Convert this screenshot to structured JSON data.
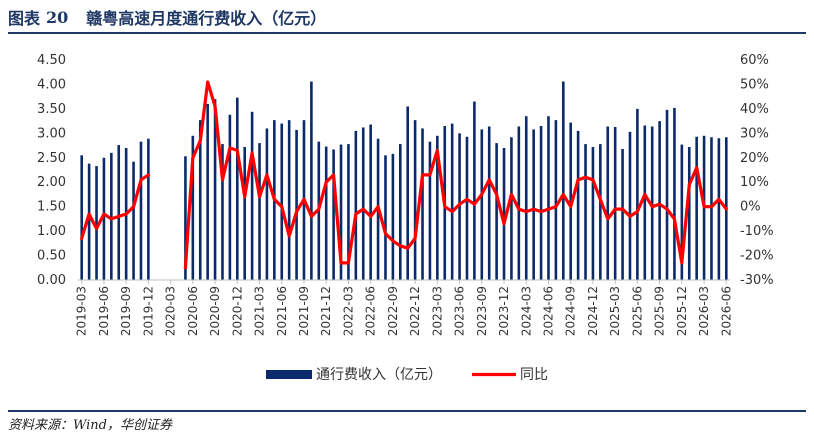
{
  "header": {
    "label": "图表",
    "number": "20",
    "title": "赣粤高速月度通行费收入（亿元）"
  },
  "source": "资料来源：Wind，华创证券",
  "chart_data": {
    "type": "bar+line",
    "title": "赣粤高速月度通行费收入（亿元）",
    "legend_position": "bottom",
    "grid": false,
    "y_left": {
      "lim": [
        0,
        4.5
      ],
      "ticks": [
        "0.00",
        "0.50",
        "1.00",
        "1.50",
        "2.00",
        "2.50",
        "3.00",
        "3.50",
        "4.00",
        "4.50"
      ]
    },
    "y_right": {
      "lim": [
        -30,
        60
      ],
      "ticks": [
        "-30%",
        "-20%",
        "-10%",
        "0%",
        "10%",
        "20%",
        "30%",
        "40%",
        "50%",
        "60%"
      ]
    },
    "x_tick_labels": [
      "2019-03",
      "2019-06",
      "2019-09",
      "2019-12",
      "2020-03",
      "2020-06",
      "2020-09",
      "2020-12",
      "2021-03",
      "2021-06",
      "2021-09",
      "2021-12",
      "2022-03",
      "2022-06",
      "2022-09",
      "2022-12",
      "2023-03",
      "2023-06",
      "2023-09",
      "2023-12",
      "2024-03",
      "2024-06",
      "2024-09",
      "2024-12",
      "2025-03",
      "2025-06",
      "2025-09",
      "2025-12",
      "2026-03",
      "2026-06"
    ],
    "months": [
      "2019-03",
      "2019-04",
      "2019-05",
      "2019-06",
      "2019-07",
      "2019-08",
      "2019-09",
      "2019-10",
      "2019-11",
      "2019-12",
      "2020-01",
      "2020-02",
      "2020-03",
      "2020-04",
      "2020-05",
      "2020-06",
      "2020-07",
      "2020-08",
      "2020-09",
      "2020-10",
      "2020-11",
      "2020-12",
      "2021-01",
      "2021-02",
      "2021-03",
      "2021-04",
      "2021-05",
      "2021-06",
      "2021-07",
      "2021-08",
      "2021-09",
      "2021-10",
      "2021-11",
      "2021-12",
      "2022-01",
      "2022-02",
      "2022-03",
      "2022-04",
      "2022-05",
      "2022-06",
      "2022-07",
      "2022-08",
      "2022-09",
      "2022-10",
      "2022-11",
      "2022-12",
      "2023-01",
      "2023-02",
      "2023-03",
      "2023-04",
      "2023-05",
      "2023-06",
      "2023-07",
      "2023-08",
      "2023-09",
      "2023-10",
      "2023-11",
      "2023-12",
      "2024-01",
      "2024-02",
      "2024-03",
      "2024-04",
      "2024-05",
      "2024-06",
      "2024-07",
      "2024-08",
      "2024-09",
      "2024-10",
      "2024-11",
      "2024-12",
      "2025-01",
      "2025-02",
      "2025-03",
      "2025-04",
      "2025-05",
      "2025-06",
      "2025-07",
      "2025-08",
      "2025-09",
      "2025-10",
      "2025-11",
      "2025-12",
      "2026-01",
      "2026-02",
      "2026-03",
      "2026-04",
      "2026-05",
      "2026-06"
    ],
    "series": [
      {
        "name": "通行费收入（亿元）",
        "type": "bar",
        "axis": "left",
        "color": "#0a2a6b",
        "values": [
          2.55,
          2.38,
          2.33,
          2.5,
          2.6,
          2.76,
          2.7,
          2.42,
          2.83,
          2.89,
          null,
          null,
          null,
          null,
          2.53,
          2.95,
          3.27,
          3.6,
          3.7,
          2.78,
          3.38,
          3.73,
          2.72,
          3.44,
          2.8,
          3.1,
          3.27,
          3.2,
          3.27,
          3.07,
          3.27,
          4.06,
          2.83,
          2.73,
          2.67,
          2.77,
          2.78,
          3.05,
          3.12,
          3.18,
          2.89,
          2.55,
          2.58,
          2.78,
          3.55,
          3.27,
          3.1,
          2.83,
          2.95,
          3.15,
          3.2,
          3.0,
          2.93,
          3.65,
          3.08,
          3.14,
          2.8,
          2.7,
          2.92,
          3.14,
          3.35,
          3.08,
          3.15,
          3.35,
          3.27,
          4.06,
          3.22,
          3.05,
          2.78,
          2.72,
          2.78,
          3.14,
          3.13,
          2.68,
          3.03,
          3.5,
          3.16,
          3.14,
          3.25,
          3.48,
          3.52,
          2.77,
          2.72,
          2.93,
          2.95,
          2.92,
          2.9,
          2.92
        ]
      },
      {
        "name": "同比",
        "type": "line",
        "axis": "right",
        "color": "#ff0000",
        "values": [
          -13,
          -3,
          -9,
          -3,
          -5,
          -4,
          -3,
          0,
          11,
          13,
          null,
          null,
          null,
          null,
          -25,
          20,
          27,
          51,
          41,
          11,
          24,
          23,
          4,
          22,
          4,
          13,
          3,
          0,
          -12,
          -2,
          3,
          -4,
          -1,
          10,
          13,
          -23,
          -23,
          -3,
          -1,
          -4,
          0,
          -11,
          -14,
          -16,
          -17,
          -13,
          13,
          13,
          23,
          0,
          -2,
          1,
          3,
          1,
          5,
          11,
          5,
          -7,
          5,
          -1,
          -2,
          -1,
          -2,
          -1,
          0,
          5,
          0,
          11,
          12,
          11,
          3,
          -5,
          -1,
          -1,
          -4,
          -2,
          5,
          0,
          1,
          -1,
          -5,
          -23,
          9,
          16,
          0,
          0,
          3,
          -1
        ]
      }
    ]
  }
}
